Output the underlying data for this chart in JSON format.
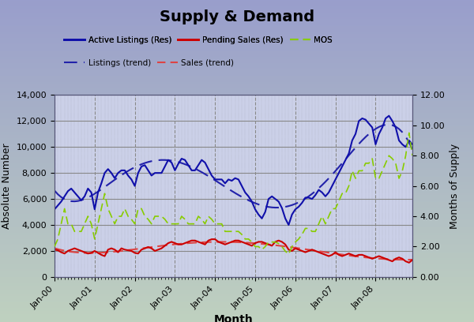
{
  "title": "Supply & Demand",
  "xlabel": "Month",
  "ylabel_left": "Absolute Number",
  "ylabel_right": "Months of Supply",
  "ylim_left": [
    0,
    14000
  ],
  "ylim_right": [
    0,
    12
  ],
  "yticks_left": [
    0,
    2000,
    4000,
    6000,
    8000,
    10000,
    12000,
    14000
  ],
  "yticks_right": [
    0.0,
    2.0,
    4.0,
    6.0,
    8.0,
    10.0,
    12.0
  ],
  "months": [
    "Jan-00",
    "Jan-01",
    "Jan-02",
    "Jan-03",
    "Jan-04",
    "Jan-05",
    "Jan-06",
    "Jan-07",
    "Jan-08"
  ],
  "n_points": 108,
  "active_listings": [
    5200,
    5500,
    5800,
    6200,
    6600,
    6800,
    6500,
    6200,
    5900,
    6200,
    6800,
    6500,
    5200,
    6500,
    7200,
    8000,
    8300,
    8000,
    7600,
    8000,
    8200,
    8200,
    7800,
    7500,
    7000,
    8000,
    8500,
    8600,
    8200,
    7800,
    8000,
    8000,
    8000,
    8500,
    9000,
    8800,
    8200,
    8700,
    9100,
    9000,
    8600,
    8200,
    8200,
    8600,
    9000,
    8800,
    8300,
    7800,
    7500,
    7500,
    7500,
    7200,
    7500,
    7400,
    7600,
    7500,
    7000,
    6500,
    6200,
    5800,
    5200,
    4800,
    4500,
    5000,
    6000,
    6200,
    6000,
    5800,
    5300,
    4500,
    4000,
    4800,
    5200,
    5400,
    5700,
    6100,
    6100,
    6000,
    6300,
    6700,
    6500,
    6200,
    6500,
    7000,
    7500,
    8000,
    8500,
    9000,
    9500,
    10500,
    11000,
    12000,
    12200,
    12100,
    11800,
    11500,
    10200,
    11000,
    11500,
    12200,
    12400,
    12000,
    11500,
    10500,
    10200,
    10000,
    10500,
    10200
  ],
  "pending_sales": [
    2100,
    2050,
    1900,
    1800,
    2000,
    2100,
    2200,
    2100,
    2000,
    1900,
    1800,
    1850,
    2000,
    1850,
    1700,
    1600,
    2100,
    2200,
    2100,
    1900,
    2200,
    2100,
    2050,
    2000,
    1850,
    1800,
    2100,
    2200,
    2300,
    2200,
    2000,
    2100,
    2200,
    2400,
    2600,
    2700,
    2600,
    2500,
    2500,
    2600,
    2700,
    2800,
    2800,
    2700,
    2600,
    2500,
    2800,
    2900,
    2900,
    2700,
    2600,
    2500,
    2600,
    2700,
    2800,
    2800,
    2700,
    2600,
    2500,
    2400,
    2600,
    2700,
    2700,
    2600,
    2500,
    2400,
    2700,
    2800,
    2700,
    2500,
    2100,
    2000,
    2200,
    2100,
    2000,
    1900,
    2000,
    2100,
    2000,
    1900,
    1800,
    1700,
    1600,
    1700,
    1900,
    1700,
    1600,
    1700,
    1800,
    1700,
    1600,
    1700,
    1700,
    1600,
    1500,
    1400,
    1500,
    1600,
    1500,
    1400,
    1300,
    1200,
    1400,
    1500,
    1400,
    1200,
    1100,
    1300
  ],
  "mos": [
    2.0,
    2.5,
    3.5,
    4.5,
    3.5,
    3.5,
    3.0,
    3.0,
    3.0,
    3.5,
    4.0,
    3.5,
    2.5,
    3.5,
    4.5,
    5.5,
    4.5,
    4.0,
    3.5,
    4.0,
    4.0,
    4.5,
    4.0,
    3.8,
    3.5,
    4.5,
    4.5,
    4.0,
    3.8,
    3.5,
    4.0,
    4.0,
    4.0,
    3.8,
    3.5,
    3.5,
    3.5,
    3.5,
    4.0,
    3.8,
    3.5,
    3.5,
    3.5,
    4.0,
    3.8,
    3.5,
    4.0,
    3.8,
    3.5,
    3.5,
    3.5,
    3.0,
    3.0,
    3.0,
    3.0,
    3.0,
    2.8,
    2.5,
    2.5,
    2.3,
    2.0,
    2.0,
    1.8,
    2.0,
    2.3,
    2.3,
    2.3,
    2.2,
    2.0,
    1.7,
    1.5,
    2.0,
    2.3,
    2.5,
    2.8,
    3.2,
    3.2,
    3.0,
    3.0,
    3.5,
    4.0,
    3.5,
    4.0,
    4.5,
    4.5,
    5.0,
    5.5,
    5.5,
    6.0,
    7.0,
    6.5,
    7.0,
    7.0,
    7.5,
    7.5,
    7.8,
    6.5,
    6.5,
    7.0,
    7.5,
    8.0,
    7.8,
    7.5,
    6.5,
    7.0,
    8.0,
    9.5,
    8.0
  ],
  "colors": {
    "active_listings": "#1010AA",
    "pending_sales": "#CC0000",
    "mos": "#88CC00",
    "listings_trend": "#2222AA",
    "sales_trend": "#DD4444"
  },
  "bg_top": "#9999CC",
  "bg_bottom": "#AABBAA",
  "plot_bg": "#C8CCE8"
}
